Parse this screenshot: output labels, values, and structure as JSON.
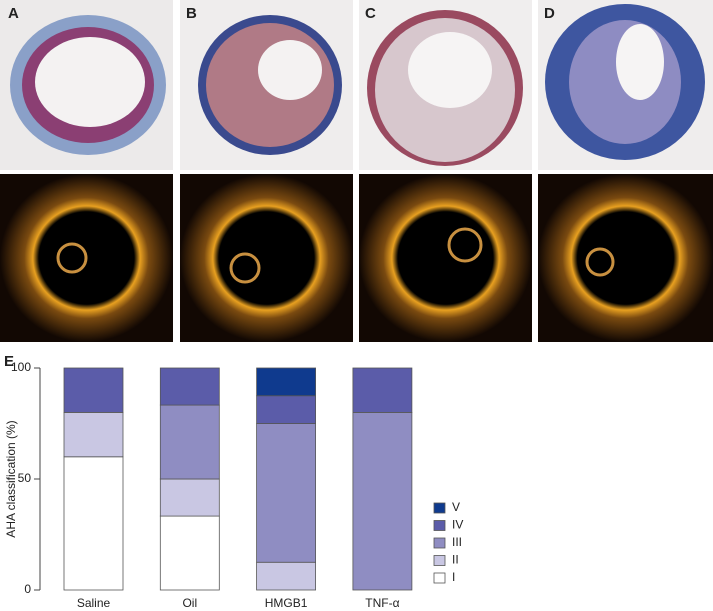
{
  "panel_labels": [
    "A",
    "B",
    "C",
    "D"
  ],
  "chart_label": "E",
  "chart_data": {
    "type": "stacked_bar",
    "y_label": "AHA classification (%)",
    "categories": [
      "Saline",
      "Oil",
      "HMGB1",
      "TNF-α"
    ],
    "series": [
      {
        "name": "I",
        "color": "#ffffff",
        "values": [
          60,
          33.3,
          0,
          0
        ]
      },
      {
        "name": "II",
        "color": "#c9c7e3",
        "values": [
          20,
          16.7,
          12.5,
          0
        ]
      },
      {
        "name": "III",
        "color": "#8f8dc2",
        "values": [
          0,
          33.3,
          62.5,
          80
        ]
      },
      {
        "name": "IV",
        "color": "#5b5ca9",
        "values": [
          20,
          16.7,
          12.5,
          20
        ]
      },
      {
        "name": "V",
        "color": "#0f3a8e",
        "values": [
          0,
          0,
          12.5,
          0
        ]
      }
    ],
    "ylim": [
      0,
      100
    ],
    "yticks": [
      0,
      50,
      100
    ],
    "legend": "right"
  }
}
